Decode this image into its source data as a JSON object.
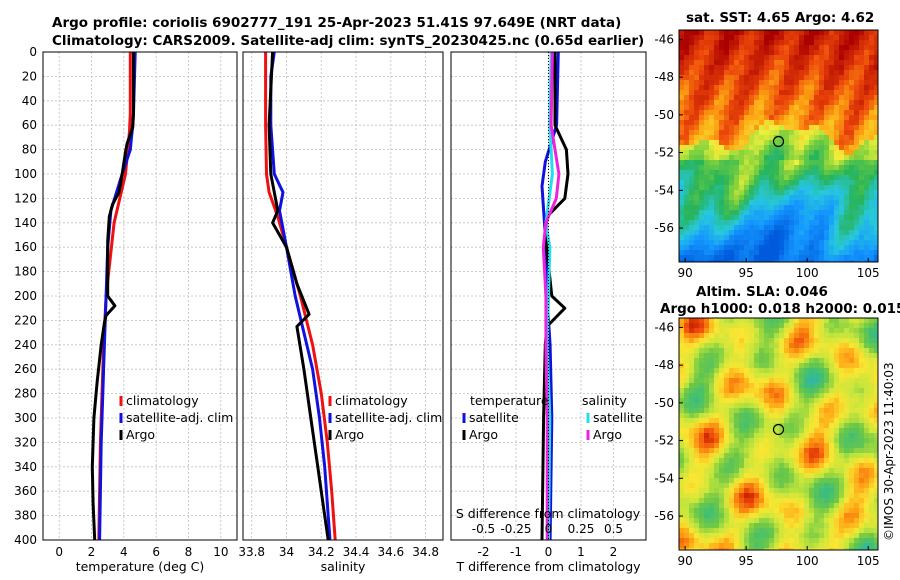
{
  "header": {
    "line1": "Argo profile: coriolis 6902777_191 25-Apr-2023 51.41S 97.649E (NRT data)",
    "line2": "Climatology: CARS2009. Satellite-adj clim: synTS_20230425.nc (0.65d earlier)"
  },
  "side_label": "©IMOS 30-Apr-2023 11:40:03",
  "colors": {
    "climatology": "#ee1111",
    "satellite": "#1111dd",
    "argo": "#000000",
    "satellite_salinity": "#22ddee",
    "argo_salinity": "#ee22dd",
    "grid": "#bdbdbd"
  },
  "chart_data": [
    {
      "type": "line",
      "id": "temperature",
      "xlabel": "temperature (deg C)",
      "ylabel": "",
      "xlim": [
        -1,
        11
      ],
      "ylim": [
        400,
        0
      ],
      "xticks": [
        "0",
        "2",
        "4",
        "6",
        "8",
        "10"
      ],
      "yticks": [
        "0",
        "20",
        "40",
        "60",
        "80",
        "100",
        "120",
        "140",
        "160",
        "180",
        "200",
        "220",
        "240",
        "260",
        "280",
        "300",
        "320",
        "340",
        "360",
        "380",
        "400"
      ],
      "legend": [
        "climatology",
        "satellite-adj. clim",
        "Argo"
      ],
      "series": [
        {
          "name": "climatology",
          "depth": [
            0,
            50,
            65,
            100,
            140,
            200,
            240,
            280,
            320,
            360,
            400
          ],
          "values": [
            4.4,
            4.4,
            4.35,
            4.1,
            3.4,
            2.9,
            2.75,
            2.65,
            2.55,
            2.5,
            2.45
          ]
        },
        {
          "name": "satellite-adj. clim",
          "depth": [
            0,
            50,
            60,
            80,
            100,
            130,
            160,
            200,
            240,
            280,
            320,
            360,
            400
          ],
          "values": [
            4.7,
            4.6,
            4.55,
            4.4,
            3.9,
            3.2,
            3.0,
            2.9,
            2.8,
            2.7,
            2.6,
            2.55,
            2.5
          ]
        },
        {
          "name": "Argo",
          "depth": [
            0,
            50,
            62,
            75,
            82,
            100,
            115,
            125,
            135,
            155,
            200,
            208,
            216,
            222,
            240,
            270,
            300,
            340,
            370,
            400
          ],
          "values": [
            4.6,
            4.6,
            4.55,
            4.2,
            4.1,
            3.9,
            3.7,
            3.3,
            3.1,
            3.0,
            3.0,
            3.45,
            2.9,
            2.8,
            2.6,
            2.35,
            2.15,
            2.05,
            2.1,
            2.2
          ]
        }
      ]
    },
    {
      "type": "line",
      "id": "salinity",
      "xlabel": "salinity",
      "ylabel": "",
      "xlim": [
        33.75,
        34.9
      ],
      "ylim": [
        400,
        0
      ],
      "xticks": [
        "33.8",
        "34",
        "34.2",
        "34.4",
        "34.6",
        "34.8"
      ],
      "legend": [
        "climatology",
        "satellite-adj. clim",
        "Argo"
      ],
      "series": [
        {
          "name": "climatology",
          "depth": [
            0,
            60,
            100,
            115,
            135,
            160,
            200,
            240,
            280,
            320,
            360,
            400
          ],
          "values": [
            33.88,
            33.88,
            33.885,
            33.9,
            33.95,
            34.0,
            34.08,
            34.15,
            34.2,
            34.235,
            34.26,
            34.28
          ]
        },
        {
          "name": "satellite-adj. clim",
          "depth": [
            0,
            20,
            60,
            100,
            115,
            130,
            160,
            200,
            230,
            260,
            300,
            340,
            380,
            400
          ],
          "values": [
            33.93,
            33.91,
            33.91,
            33.93,
            33.98,
            33.96,
            34.0,
            34.05,
            34.1,
            34.15,
            34.19,
            34.22,
            34.24,
            34.25
          ]
        },
        {
          "name": "Argo",
          "depth": [
            0,
            60,
            100,
            130,
            140,
            160,
            190,
            215,
            225,
            260,
            300,
            340,
            380,
            400
          ],
          "values": [
            33.92,
            33.9,
            33.91,
            33.95,
            33.92,
            34.0,
            34.06,
            34.13,
            34.06,
            34.1,
            34.14,
            34.18,
            34.22,
            34.24
          ]
        }
      ]
    },
    {
      "type": "line",
      "id": "difference",
      "xlabel": "T difference from climatology",
      "ylabel": "",
      "xlim": [
        -3,
        3
      ],
      "ylim": [
        400,
        0
      ],
      "xticks": [
        "-2",
        "-1",
        "0",
        "1",
        "2"
      ],
      "top_axis_label": "S difference from climatology",
      "top_xticks": [
        "-0.5",
        "-0.25",
        "0",
        "0.25",
        "0.5"
      ],
      "legend_titles": [
        "temperature",
        "salinity"
      ],
      "legend": [
        "satellite",
        "Argo",
        "satellite",
        "Argo"
      ],
      "series": [
        {
          "name": "temperature satellite",
          "depth": [
            0,
            60,
            90,
            110,
            150,
            200,
            240,
            300,
            400
          ],
          "values": [
            0.3,
            0.25,
            -0.1,
            -0.2,
            -0.1,
            -0.05,
            0.05,
            0.1,
            0.05
          ]
        },
        {
          "name": "temperature Argo",
          "depth": [
            0,
            60,
            80,
            100,
            120,
            135,
            150,
            200,
            210,
            225,
            240,
            300,
            400
          ],
          "values": [
            0.2,
            0.2,
            0.55,
            0.6,
            0.5,
            -0.05,
            -0.1,
            0.1,
            0.5,
            -0.05,
            -0.1,
            -0.15,
            -0.2
          ]
        },
        {
          "name": "salinity satellite",
          "depth": [
            0,
            60,
            100,
            140,
            160,
            200,
            240,
            300,
            400
          ],
          "values": [
            0.02,
            0.01,
            0.03,
            -0.02,
            0.01,
            0.0,
            -0.01,
            0.01,
            0.0
          ]
        },
        {
          "name": "salinity Argo",
          "depth": [
            0,
            60,
            100,
            120,
            140,
            160,
            200,
            240,
            300,
            400
          ],
          "values": [
            0.03,
            0.02,
            0.08,
            0.06,
            -0.02,
            -0.04,
            -0.02,
            -0.02,
            -0.01,
            -0.01
          ]
        }
      ]
    },
    {
      "type": "heatmap",
      "id": "sst-map",
      "title": "sat. SST: 4.65 Argo: 4.62",
      "xlim": [
        89.5,
        105.8
      ],
      "ylim": [
        -57.8,
        -45.5
      ],
      "xticks": [
        "90",
        "95",
        "100",
        "105"
      ],
      "yticks": [
        "-46",
        "-48",
        "-50",
        "-52",
        "-54",
        "-56"
      ],
      "marker": {
        "lon": 97.649,
        "lat": -51.41
      }
    },
    {
      "type": "heatmap",
      "id": "sla-map",
      "title": "Altim. SLA: 0.046",
      "subtitle": "Argo h1000: 0.018 h2000: 0.015",
      "xlim": [
        89.5,
        105.8
      ],
      "ylim": [
        -57.8,
        -45.5
      ],
      "xticks": [
        "90",
        "95",
        "100",
        "105"
      ],
      "yticks": [
        "-46",
        "-48",
        "-50",
        "-52",
        "-54",
        "-56"
      ],
      "marker": {
        "lon": 97.649,
        "lat": -51.41
      }
    }
  ]
}
